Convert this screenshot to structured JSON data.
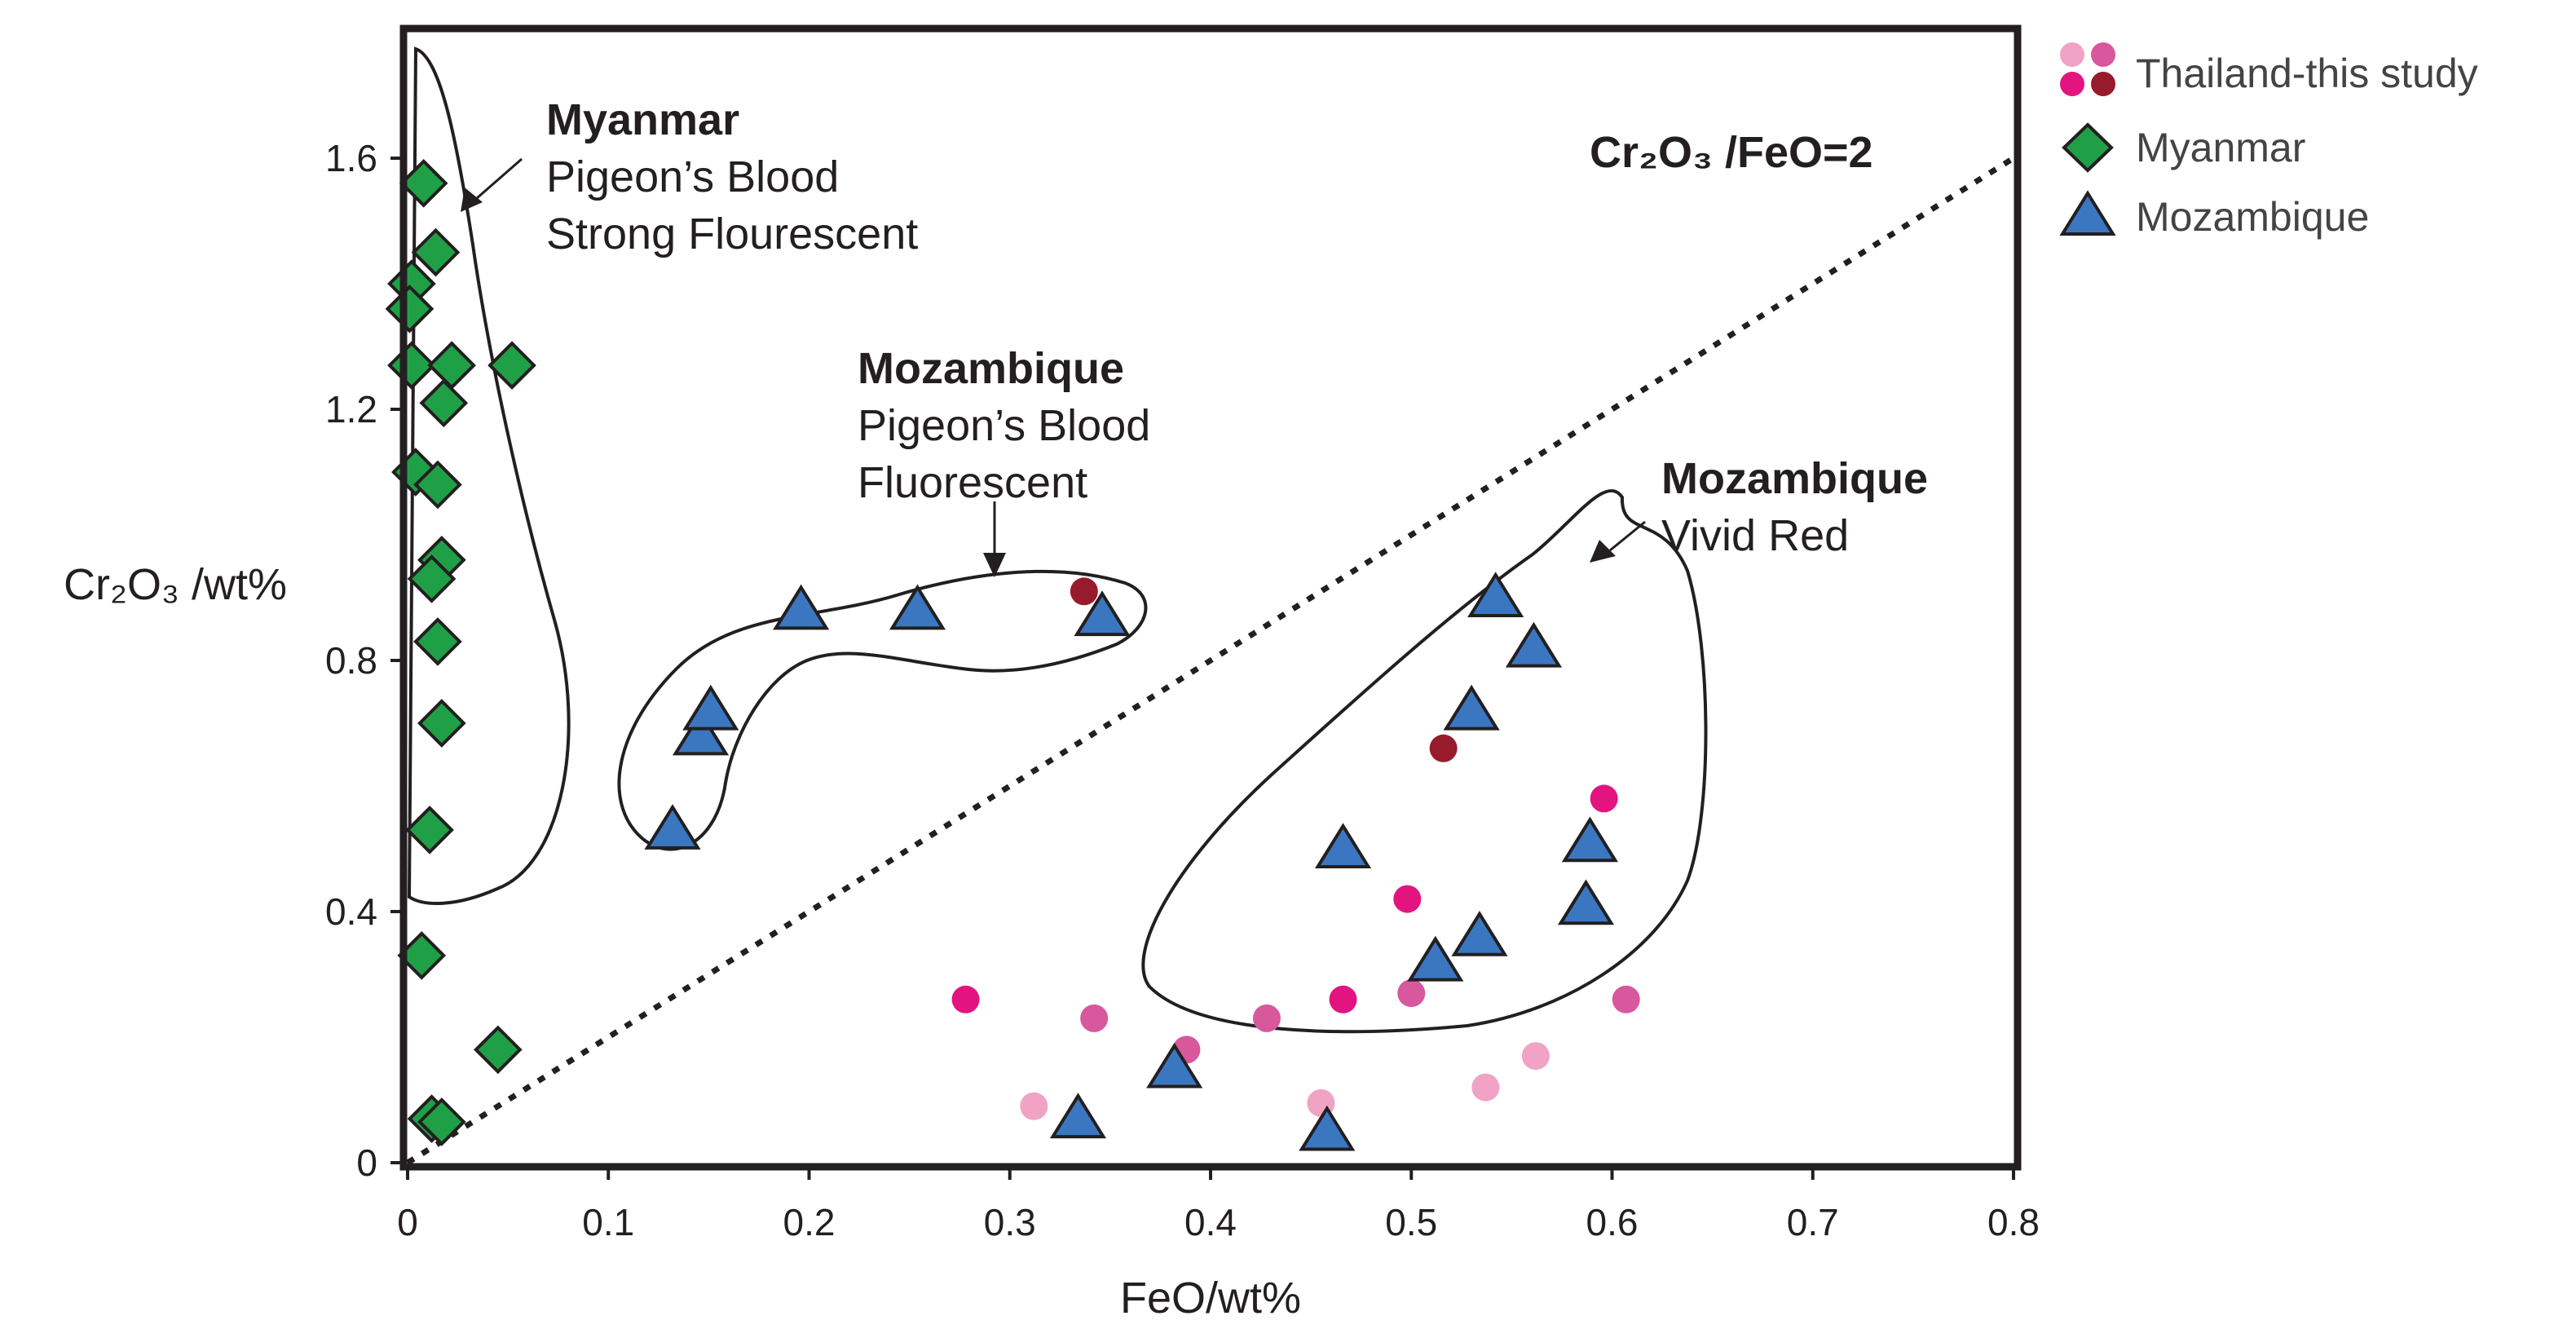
{
  "chart_data": {
    "type": "scatter",
    "xlabel": "FeO/wt%",
    "ylabel": "Cr₂O₃ /wt%",
    "xlim": [
      0,
      0.8
    ],
    "ylim": [
      0,
      1.8
    ],
    "x_ticks": [
      "0",
      "0.1",
      "0.2",
      "0.3",
      "0.4",
      "0.5",
      "0.6",
      "0.7",
      "0.8"
    ],
    "y_ticks": [
      "0",
      "0.4",
      "0.8",
      "1.2",
      "1.6"
    ],
    "reference_line": {
      "label": "Cr₂O₃ /FeO=2",
      "slope": 2,
      "style": "dotted"
    },
    "series": [
      {
        "name": "Thailand-this study",
        "marker": "circle",
        "colors": [
          "#f0a3c4",
          "#d7589c",
          "#e3147f",
          "#981b2b"
        ],
        "points": [
          {
            "x": 0.278,
            "y": 0.26,
            "color": "#e3147f"
          },
          {
            "x": 0.312,
            "y": 0.09,
            "color": "#f0a3c4"
          },
          {
            "x": 0.337,
            "y": 0.91,
            "color": "#981b2b"
          },
          {
            "x": 0.342,
            "y": 0.23,
            "color": "#d7589c"
          },
          {
            "x": 0.388,
            "y": 0.18,
            "color": "#d7589c"
          },
          {
            "x": 0.428,
            "y": 0.23,
            "color": "#d7589c"
          },
          {
            "x": 0.455,
            "y": 0.095,
            "color": "#f0a3c4"
          },
          {
            "x": 0.466,
            "y": 0.26,
            "color": "#e3147f"
          },
          {
            "x": 0.498,
            "y": 0.42,
            "color": "#e3147f"
          },
          {
            "x": 0.5,
            "y": 0.27,
            "color": "#d7589c"
          },
          {
            "x": 0.516,
            "y": 0.66,
            "color": "#981b2b"
          },
          {
            "x": 0.537,
            "y": 0.12,
            "color": "#f0a3c4"
          },
          {
            "x": 0.562,
            "y": 0.17,
            "color": "#f0a3c4"
          },
          {
            "x": 0.596,
            "y": 0.58,
            "color": "#e3147f"
          },
          {
            "x": 0.607,
            "y": 0.26,
            "color": "#d7589c"
          }
        ]
      },
      {
        "name": "Myanmar",
        "marker": "diamond",
        "color": "#1fa046",
        "points": [
          {
            "x": 0.008,
            "y": 1.56
          },
          {
            "x": 0.014,
            "y": 1.45
          },
          {
            "x": 0.002,
            "y": 1.4
          },
          {
            "x": 0.001,
            "y": 1.36
          },
          {
            "x": 0.002,
            "y": 1.27
          },
          {
            "x": 0.022,
            "y": 1.27
          },
          {
            "x": 0.052,
            "y": 1.27
          },
          {
            "x": 0.018,
            "y": 1.21
          },
          {
            "x": 0.004,
            "y": 1.1
          },
          {
            "x": 0.015,
            "y": 1.08
          },
          {
            "x": 0.017,
            "y": 0.96
          },
          {
            "x": 0.012,
            "y": 0.93
          },
          {
            "x": 0.015,
            "y": 0.83
          },
          {
            "x": 0.017,
            "y": 0.7
          },
          {
            "x": 0.011,
            "y": 0.53
          },
          {
            "x": 0.007,
            "y": 0.33
          },
          {
            "x": 0.045,
            "y": 0.18
          },
          {
            "x": 0.012,
            "y": 0.07
          },
          {
            "x": 0.017,
            "y": 0.065
          }
        ]
      },
      {
        "name": "Mozambique",
        "marker": "triangle",
        "color": "#3b77c0",
        "points": [
          {
            "x": 0.132,
            "y": 0.53
          },
          {
            "x": 0.146,
            "y": 0.68
          },
          {
            "x": 0.151,
            "y": 0.72
          },
          {
            "x": 0.196,
            "y": 0.88
          },
          {
            "x": 0.254,
            "y": 0.88
          },
          {
            "x": 0.346,
            "y": 0.87
          },
          {
            "x": 0.334,
            "y": 0.07
          },
          {
            "x": 0.382,
            "y": 0.15
          },
          {
            "x": 0.458,
            "y": 0.05
          },
          {
            "x": 0.466,
            "y": 0.5
          },
          {
            "x": 0.512,
            "y": 0.32
          },
          {
            "x": 0.53,
            "y": 0.72
          },
          {
            "x": 0.534,
            "y": 0.36
          },
          {
            "x": 0.542,
            "y": 0.9
          },
          {
            "x": 0.561,
            "y": 0.82
          },
          {
            "x": 0.587,
            "y": 0.41
          },
          {
            "x": 0.589,
            "y": 0.51
          }
        ]
      }
    ],
    "annotations": [
      {
        "region": "myanmar",
        "title": "Myanmar",
        "lines": [
          "Pigeon’s Blood",
          "Strong Flourescent"
        ]
      },
      {
        "region": "moz-pigeon",
        "title": "Mozambique",
        "lines": [
          "Pigeon’s Blood",
          "Fluorescent"
        ]
      },
      {
        "region": "moz-vivid",
        "title": "Mozambique",
        "lines": [
          "Vivid Red"
        ]
      }
    ],
    "legend": {
      "position": "top-right, outside plot",
      "entries": [
        "Thailand-this study",
        "Myanmar",
        "Mozambique"
      ]
    }
  }
}
